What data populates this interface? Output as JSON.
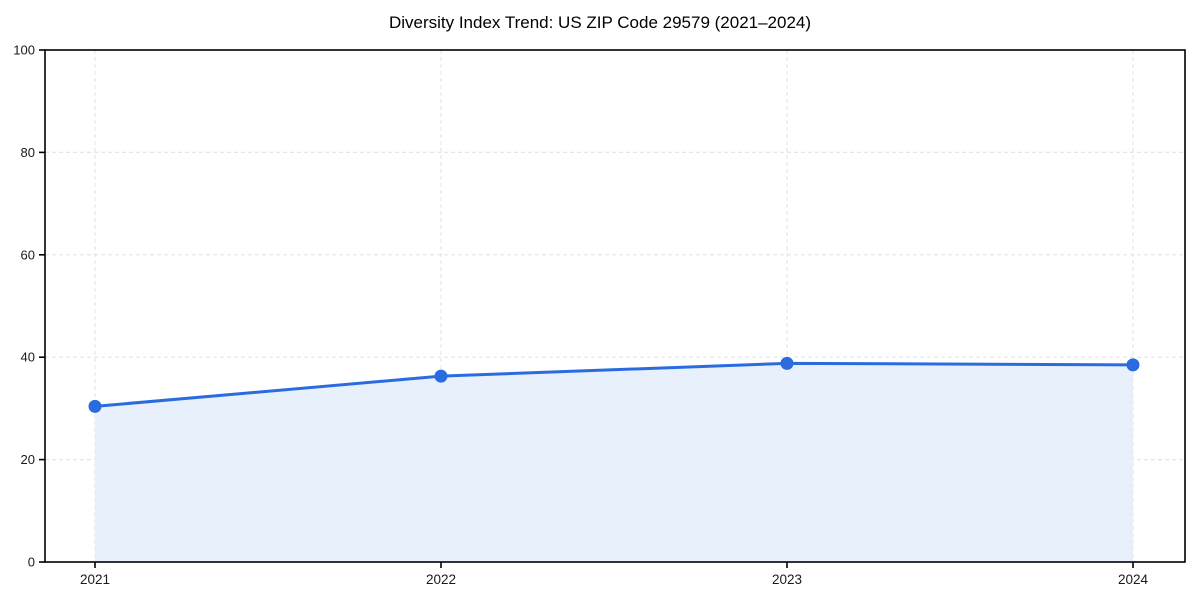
{
  "chart_data": {
    "type": "line",
    "title": "Diversity Index Trend: US ZIP Code 29579 (2021–2024)",
    "categories": [
      "2021",
      "2022",
      "2023",
      "2024"
    ],
    "series": [
      {
        "name": "Diversity Index",
        "values": [
          30.4,
          36.3,
          38.8,
          38.5
        ]
      }
    ],
    "xlabel": "",
    "ylabel": "",
    "ylim": [
      0,
      100
    ],
    "yticks": [
      0,
      20,
      40,
      60,
      80,
      100
    ],
    "grid": true,
    "grid_style": "dashed",
    "legend": false,
    "area_fill": true,
    "marker": "circle",
    "colors": {
      "line": "#2a6cdf",
      "marker": "#2a6cdf",
      "area": "#e8f0fb",
      "grid": "#e2e5ea",
      "axis": "#000000",
      "tick_text": "#1a1a1a",
      "title_text": "#000000",
      "background": "#ffffff"
    }
  }
}
